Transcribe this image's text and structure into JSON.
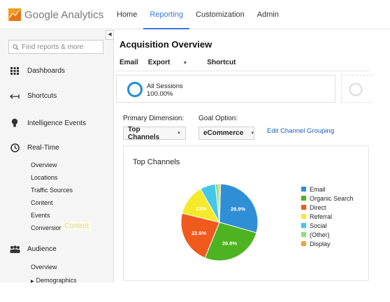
{
  "app": {
    "logo_text": "Google Analytics"
  },
  "nav": [
    {
      "label": "Home",
      "active": false
    },
    {
      "label": "Reporting",
      "active": true
    },
    {
      "label": "Customization",
      "active": false
    },
    {
      "label": "Admin",
      "active": false
    }
  ],
  "sidebar": {
    "search_placeholder": "Find reports & more",
    "collapse_glyph": "◀",
    "items": [
      {
        "label": "Dashboards",
        "icon": "grid-icon"
      },
      {
        "label": "Shortcuts",
        "icon": "arrow-icon"
      },
      {
        "label": "Intelligence Events",
        "icon": "lightbulb-icon"
      },
      {
        "label": "Real-Time",
        "icon": "clock-icon"
      }
    ],
    "realtime_sub": [
      "Overview",
      "Locations",
      "Traffic Sources",
      "Content",
      "Events",
      "Conversions"
    ],
    "tooltip": "Content",
    "audience": {
      "label": "Audience",
      "icon": "people-icon"
    },
    "audience_sub": [
      "Overview",
      "Demographics"
    ]
  },
  "main": {
    "title": "Acquisition Overview",
    "actions": {
      "email": "Email",
      "export": "Export",
      "shortcut": "Shortcut"
    },
    "segment": {
      "name": "All Sessions",
      "value": "100.00%"
    },
    "primary_dimension_label": "Primary Dimension:",
    "goal_option_label": "Goal Option:",
    "primary_dimension_value": "Top Channels",
    "goal_option_value": "eCommerce",
    "edit_link": "Edit Channel Grouping"
  },
  "colors": {
    "accent": "#3b78e7",
    "segment_ring": "#1f8fd4"
  },
  "chart_data": {
    "type": "pie",
    "title": "Top Channels",
    "legend_placement": "right",
    "slices": [
      {
        "name": "Email",
        "value": 28.9,
        "label": "28.9%",
        "color": "#2f8fd6"
      },
      {
        "name": "Organic Search",
        "value": 26.8,
        "label": "26.8%",
        "color": "#4db320"
      },
      {
        "name": "Direct",
        "value": 22.6,
        "label": "22.6%",
        "color": "#f05a1c"
      },
      {
        "name": "Referral",
        "value": 13.0,
        "label": "13%",
        "color": "#f4ea2a"
      },
      {
        "name": "Social",
        "value": 6.5,
        "label": "",
        "color": "#45c6ea"
      },
      {
        "name": "(Other)",
        "value": 1.5,
        "label": "",
        "color": "#8be07a"
      },
      {
        "name": "Display",
        "value": 0.7,
        "label": "",
        "color": "#f4a13c"
      }
    ]
  }
}
